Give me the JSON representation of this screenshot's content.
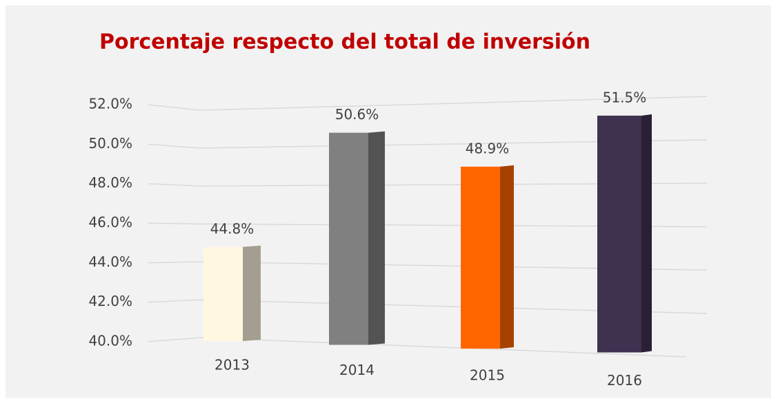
{
  "chart_data": {
    "type": "bar3d",
    "title": "Porcentaje respecto del total de inversión",
    "categories": [
      "2013",
      "2014",
      "2015",
      "2016"
    ],
    "values": [
      44.8,
      50.6,
      48.9,
      51.5
    ],
    "value_labels": [
      "44.8%",
      "50.6%",
      "48.9%",
      "51.5%"
    ],
    "colors": [
      "#fff7e0",
      "#808080",
      "#ff6600",
      "#3f3150"
    ],
    "ylim": [
      40,
      52
    ],
    "yticks": [
      {
        "value": 40,
        "label": "40.0%"
      },
      {
        "value": 42,
        "label": "42.0%"
      },
      {
        "value": 44,
        "label": "44.0%"
      },
      {
        "value": 46,
        "label": "46.0%"
      },
      {
        "value": 48,
        "label": "48.0%"
      },
      {
        "value": 50,
        "label": "50.0%"
      },
      {
        "value": 52,
        "label": "52.0%"
      }
    ],
    "grid": true
  }
}
